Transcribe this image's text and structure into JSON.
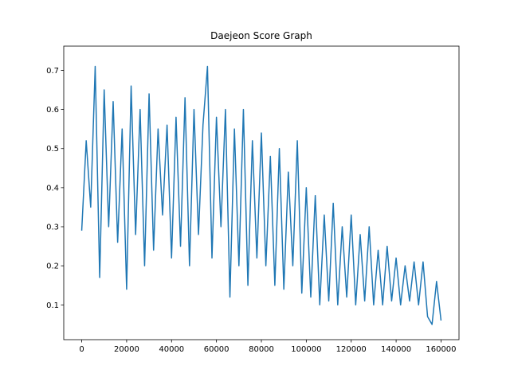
{
  "chart_data": {
    "type": "line",
    "title": "Daejeon Score Graph",
    "x": [
      0,
      2000,
      4000,
      6000,
      8000,
      10000,
      12000,
      14000,
      16000,
      18000,
      20000,
      22000,
      24000,
      26000,
      28000,
      30000,
      32000,
      34000,
      36000,
      38000,
      40000,
      42000,
      44000,
      46000,
      48000,
      50000,
      52000,
      54000,
      56000,
      58000,
      60000,
      62000,
      64000,
      66000,
      68000,
      70000,
      72000,
      74000,
      76000,
      78000,
      80000,
      82000,
      84000,
      86000,
      88000,
      90000,
      92000,
      94000,
      96000,
      98000,
      100000,
      102000,
      104000,
      106000,
      108000,
      110000,
      112000,
      114000,
      116000,
      118000,
      120000,
      122000,
      124000,
      126000,
      128000,
      130000,
      132000,
      134000,
      136000,
      138000,
      140000,
      142000,
      144000,
      146000,
      148000,
      150000,
      152000,
      154000,
      156000,
      158000,
      160000
    ],
    "series": [
      {
        "color": "#1f77b4",
        "values": [
          0.29,
          0.52,
          0.35,
          0.71,
          0.17,
          0.65,
          0.3,
          0.62,
          0.26,
          0.55,
          0.14,
          0.66,
          0.28,
          0.6,
          0.2,
          0.64,
          0.24,
          0.55,
          0.33,
          0.56,
          0.22,
          0.58,
          0.25,
          0.63,
          0.2,
          0.6,
          0.28,
          0.56,
          0.71,
          0.22,
          0.58,
          0.3,
          0.6,
          0.12,
          0.55,
          0.2,
          0.6,
          0.15,
          0.52,
          0.22,
          0.54,
          0.2,
          0.48,
          0.15,
          0.5,
          0.14,
          0.44,
          0.2,
          0.52,
          0.13,
          0.4,
          0.12,
          0.38,
          0.1,
          0.33,
          0.11,
          0.36,
          0.1,
          0.3,
          0.12,
          0.33,
          0.1,
          0.28,
          0.11,
          0.3,
          0.1,
          0.24,
          0.1,
          0.25,
          0.11,
          0.22,
          0.1,
          0.2,
          0.11,
          0.21,
          0.1,
          0.21,
          0.07,
          0.05,
          0.16,
          0.06
        ]
      }
    ],
    "xlim": [
      -8000,
      168000
    ],
    "ylim": [
      0.011,
      0.762
    ],
    "xticks": [
      0,
      20000,
      40000,
      60000,
      80000,
      100000,
      120000,
      140000,
      160000
    ],
    "yticks": [
      0.1,
      0.2,
      0.3,
      0.4,
      0.5,
      0.6,
      0.7
    ]
  }
}
